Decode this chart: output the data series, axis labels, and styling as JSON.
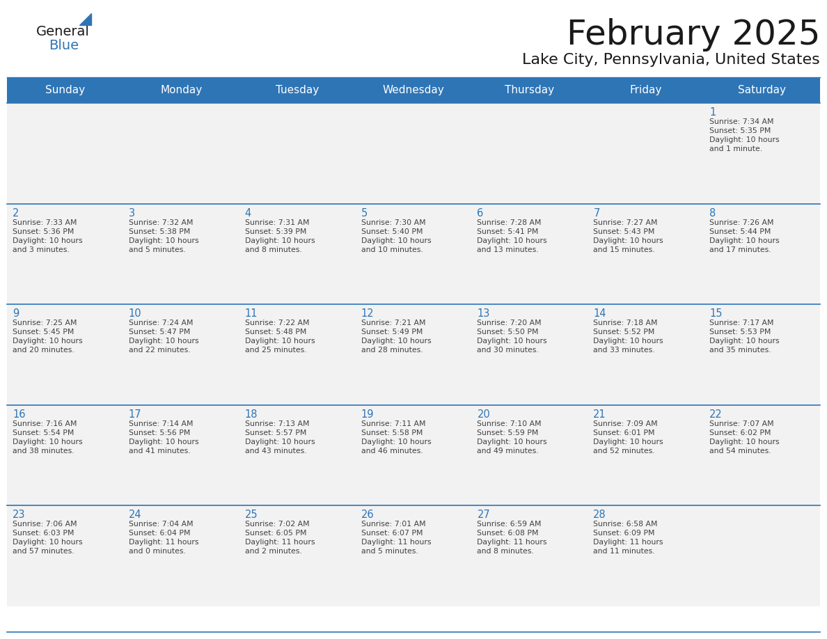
{
  "title": "February 2025",
  "subtitle": "Lake City, Pennsylvania, United States",
  "header_bg": "#2E75B6",
  "header_text_color": "#FFFFFF",
  "cell_bg": "#F2F2F2",
  "cell_bg_white": "#FFFFFF",
  "row_divider_color": "#2E75B6",
  "text_color": "#404040",
  "day_number_color": "#2E75B6",
  "title_color": "#1a1a1a",
  "subtitle_color": "#1a1a1a",
  "logo_general_color": "#1a1a1a",
  "logo_blue_color": "#2E75B6",
  "day_names": [
    "Sunday",
    "Monday",
    "Tuesday",
    "Wednesday",
    "Thursday",
    "Friday",
    "Saturday"
  ],
  "weeks": [
    [
      {
        "day": null,
        "info": null
      },
      {
        "day": null,
        "info": null
      },
      {
        "day": null,
        "info": null
      },
      {
        "day": null,
        "info": null
      },
      {
        "day": null,
        "info": null
      },
      {
        "day": null,
        "info": null
      },
      {
        "day": 1,
        "info": "Sunrise: 7:34 AM\nSunset: 5:35 PM\nDaylight: 10 hours\nand 1 minute."
      }
    ],
    [
      {
        "day": 2,
        "info": "Sunrise: 7:33 AM\nSunset: 5:36 PM\nDaylight: 10 hours\nand 3 minutes."
      },
      {
        "day": 3,
        "info": "Sunrise: 7:32 AM\nSunset: 5:38 PM\nDaylight: 10 hours\nand 5 minutes."
      },
      {
        "day": 4,
        "info": "Sunrise: 7:31 AM\nSunset: 5:39 PM\nDaylight: 10 hours\nand 8 minutes."
      },
      {
        "day": 5,
        "info": "Sunrise: 7:30 AM\nSunset: 5:40 PM\nDaylight: 10 hours\nand 10 minutes."
      },
      {
        "day": 6,
        "info": "Sunrise: 7:28 AM\nSunset: 5:41 PM\nDaylight: 10 hours\nand 13 minutes."
      },
      {
        "day": 7,
        "info": "Sunrise: 7:27 AM\nSunset: 5:43 PM\nDaylight: 10 hours\nand 15 minutes."
      },
      {
        "day": 8,
        "info": "Sunrise: 7:26 AM\nSunset: 5:44 PM\nDaylight: 10 hours\nand 17 minutes."
      }
    ],
    [
      {
        "day": 9,
        "info": "Sunrise: 7:25 AM\nSunset: 5:45 PM\nDaylight: 10 hours\nand 20 minutes."
      },
      {
        "day": 10,
        "info": "Sunrise: 7:24 AM\nSunset: 5:47 PM\nDaylight: 10 hours\nand 22 minutes."
      },
      {
        "day": 11,
        "info": "Sunrise: 7:22 AM\nSunset: 5:48 PM\nDaylight: 10 hours\nand 25 minutes."
      },
      {
        "day": 12,
        "info": "Sunrise: 7:21 AM\nSunset: 5:49 PM\nDaylight: 10 hours\nand 28 minutes."
      },
      {
        "day": 13,
        "info": "Sunrise: 7:20 AM\nSunset: 5:50 PM\nDaylight: 10 hours\nand 30 minutes."
      },
      {
        "day": 14,
        "info": "Sunrise: 7:18 AM\nSunset: 5:52 PM\nDaylight: 10 hours\nand 33 minutes."
      },
      {
        "day": 15,
        "info": "Sunrise: 7:17 AM\nSunset: 5:53 PM\nDaylight: 10 hours\nand 35 minutes."
      }
    ],
    [
      {
        "day": 16,
        "info": "Sunrise: 7:16 AM\nSunset: 5:54 PM\nDaylight: 10 hours\nand 38 minutes."
      },
      {
        "day": 17,
        "info": "Sunrise: 7:14 AM\nSunset: 5:56 PM\nDaylight: 10 hours\nand 41 minutes."
      },
      {
        "day": 18,
        "info": "Sunrise: 7:13 AM\nSunset: 5:57 PM\nDaylight: 10 hours\nand 43 minutes."
      },
      {
        "day": 19,
        "info": "Sunrise: 7:11 AM\nSunset: 5:58 PM\nDaylight: 10 hours\nand 46 minutes."
      },
      {
        "day": 20,
        "info": "Sunrise: 7:10 AM\nSunset: 5:59 PM\nDaylight: 10 hours\nand 49 minutes."
      },
      {
        "day": 21,
        "info": "Sunrise: 7:09 AM\nSunset: 6:01 PM\nDaylight: 10 hours\nand 52 minutes."
      },
      {
        "day": 22,
        "info": "Sunrise: 7:07 AM\nSunset: 6:02 PM\nDaylight: 10 hours\nand 54 minutes."
      }
    ],
    [
      {
        "day": 23,
        "info": "Sunrise: 7:06 AM\nSunset: 6:03 PM\nDaylight: 10 hours\nand 57 minutes."
      },
      {
        "day": 24,
        "info": "Sunrise: 7:04 AM\nSunset: 6:04 PM\nDaylight: 11 hours\nand 0 minutes."
      },
      {
        "day": 25,
        "info": "Sunrise: 7:02 AM\nSunset: 6:05 PM\nDaylight: 11 hours\nand 2 minutes."
      },
      {
        "day": 26,
        "info": "Sunrise: 7:01 AM\nSunset: 6:07 PM\nDaylight: 11 hours\nand 5 minutes."
      },
      {
        "day": 27,
        "info": "Sunrise: 6:59 AM\nSunset: 6:08 PM\nDaylight: 11 hours\nand 8 minutes."
      },
      {
        "day": 28,
        "info": "Sunrise: 6:58 AM\nSunset: 6:09 PM\nDaylight: 11 hours\nand 11 minutes."
      },
      {
        "day": null,
        "info": null
      }
    ]
  ]
}
